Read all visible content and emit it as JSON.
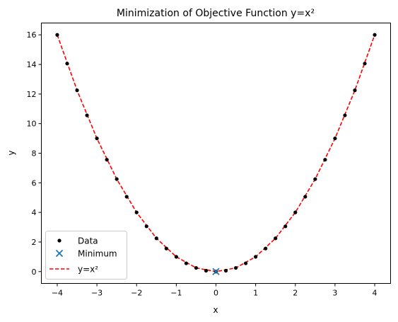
{
  "chart_data": {
    "type": "scatter",
    "title": "Minimization of Objective Function y=x²",
    "xlabel": "x",
    "ylabel": "y",
    "xlim": [
      -4.4,
      4.4
    ],
    "ylim": [
      -0.8,
      16.8
    ],
    "xticks": [
      -4,
      -3,
      -2,
      -1,
      0,
      1,
      2,
      3,
      4
    ],
    "yticks": [
      0,
      2,
      4,
      6,
      8,
      10,
      12,
      14,
      16
    ],
    "grid": false,
    "legend_position": "lower-left",
    "series": [
      {
        "name": "Data",
        "kind": "scatter",
        "marker": "dot",
        "color": "#000000",
        "x": [
          -4.0,
          -3.75,
          -3.5,
          -3.25,
          -3.0,
          -2.75,
          -2.5,
          -2.25,
          -2.0,
          -1.75,
          -1.5,
          -1.25,
          -1.0,
          -0.75,
          -0.5,
          -0.25,
          0.0,
          0.25,
          0.5,
          0.75,
          1.0,
          1.25,
          1.5,
          1.75,
          2.0,
          2.25,
          2.5,
          2.75,
          3.0,
          3.25,
          3.5,
          3.75,
          4.0
        ],
        "y": [
          16.0,
          14.06,
          12.25,
          10.56,
          9.0,
          7.56,
          6.25,
          5.06,
          4.0,
          3.06,
          2.25,
          1.56,
          1.0,
          0.56,
          0.25,
          0.06,
          0.0,
          0.06,
          0.25,
          0.56,
          1.0,
          1.56,
          2.25,
          3.06,
          4.0,
          5.06,
          6.25,
          7.56,
          9.0,
          10.56,
          12.25,
          14.06,
          16.0
        ]
      },
      {
        "name": "Minimum",
        "kind": "scatter",
        "marker": "x",
        "color": "#1f77b4",
        "x": [
          0
        ],
        "y": [
          0
        ]
      },
      {
        "name": "y=x²",
        "kind": "line",
        "style": "dashed",
        "color": "#ff0000",
        "x": [
          -4.0,
          -3.5,
          -3.0,
          -2.5,
          -2.0,
          -1.5,
          -1.0,
          -0.5,
          0.0,
          0.5,
          1.0,
          1.5,
          2.0,
          2.5,
          3.0,
          3.5,
          4.0
        ],
        "y": [
          16.0,
          12.25,
          9.0,
          6.25,
          4.0,
          2.25,
          1.0,
          0.25,
          0.0,
          0.25,
          1.0,
          2.25,
          4.0,
          6.25,
          9.0,
          12.25,
          16.0
        ]
      }
    ]
  }
}
